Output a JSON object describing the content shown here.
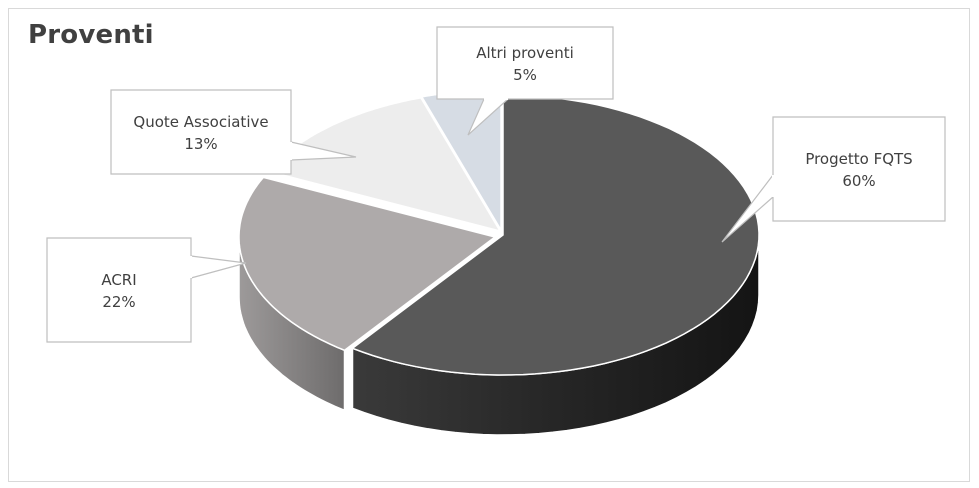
{
  "chart_data": {
    "type": "pie",
    "title": "Proventi",
    "style": "3d-exploded-pie",
    "slices": [
      {
        "label": "Progetto FQTS",
        "value": 60,
        "percent_label": "60%",
        "color": "#595959"
      },
      {
        "label": "ACRI",
        "value": 22,
        "percent_label": "22%",
        "color": "#aeaaaa"
      },
      {
        "label": "Quote Associative",
        "value": 13,
        "percent_label": "13%",
        "color": "#ededed"
      },
      {
        "label": "Altri proventi",
        "value": 5,
        "percent_label": "5%",
        "color": "#d6dce4"
      }
    ],
    "legend": "none",
    "data_labels": "callouts"
  }
}
